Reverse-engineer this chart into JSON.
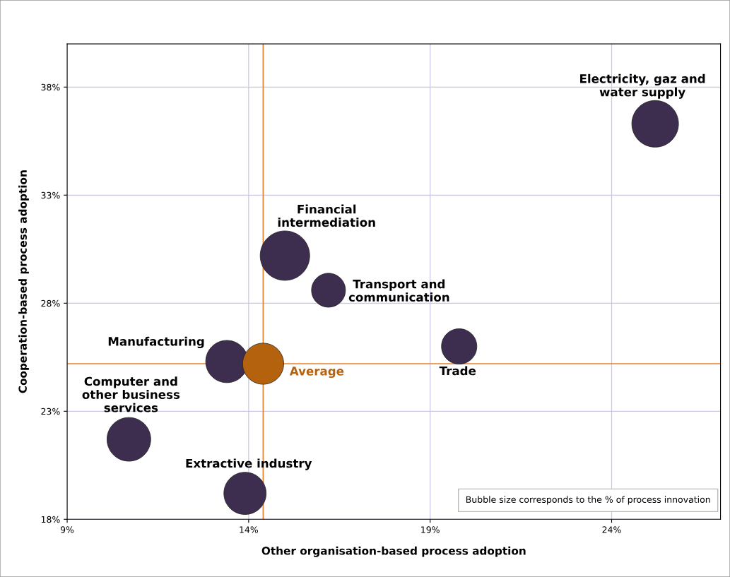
{
  "chart_data": {
    "type": "bubble",
    "xlabel": "Other organisation-based process adoption",
    "ylabel": "Cooperation-based process adoption",
    "xlim": [
      9,
      27
    ],
    "ylim": [
      18,
      40
    ],
    "xticks": [
      {
        "value": 9,
        "label": "9%"
      },
      {
        "value": 14,
        "label": "14%"
      },
      {
        "value": 19,
        "label": "19%"
      },
      {
        "value": 24,
        "label": "24%"
      }
    ],
    "yticks": [
      {
        "value": 18,
        "label": "18%"
      },
      {
        "value": 23,
        "label": "23%"
      },
      {
        "value": 28,
        "label": "28%"
      },
      {
        "value": 33,
        "label": "33%"
      },
      {
        "value": 38,
        "label": "38%"
      }
    ],
    "grid": true,
    "legend": false,
    "series": [
      {
        "name": "Electricity, gaz and\nwater supply",
        "color": "#3d2e50",
        "x": [
          25.2
        ],
        "values": [
          36.3
        ],
        "sizes": [
          0.89
        ]
      },
      {
        "name": "Financial\nintermediation",
        "color": "#3d2e50",
        "x": [
          15.0
        ],
        "values": [
          30.2
        ],
        "sizes": [
          1
        ]
      },
      {
        "name": "Transport and\ncommunication",
        "color": "#3d2e50",
        "x": [
          16.2
        ],
        "values": [
          28.6
        ],
        "sizes": [
          0.47
        ]
      },
      {
        "name": "Trade",
        "color": "#3d2e50",
        "x": [
          19.8
        ],
        "values": [
          26.0
        ],
        "sizes": [
          0.51
        ]
      },
      {
        "name": "Manufacturing",
        "color": "#3d2e50",
        "x": [
          13.4
        ],
        "values": [
          25.3
        ],
        "sizes": [
          0.73
        ]
      },
      {
        "name": "Average",
        "color": "#b5620f",
        "x": [
          14.4
        ],
        "values": [
          25.2
        ],
        "sizes": [
          0.69
        ]
      },
      {
        "name": "Computer and\nother business\nservices",
        "color": "#3d2e50",
        "x": [
          10.7
        ],
        "values": [
          21.7
        ],
        "sizes": [
          0.78
        ]
      },
      {
        "name": "Extractive industry",
        "color": "#3d2e50",
        "x": [
          13.9
        ],
        "values": [
          19.2
        ],
        "sizes": [
          0.73
        ]
      }
    ],
    "ref_lines": [
      {
        "axis": "x",
        "value": 14.4,
        "color": "#e8822a"
      },
      {
        "axis": "y",
        "value": 25.2,
        "color": "#e8822a"
      }
    ],
    "annotations": [
      "Bubble size corresponds to the % of process innovation"
    ]
  }
}
